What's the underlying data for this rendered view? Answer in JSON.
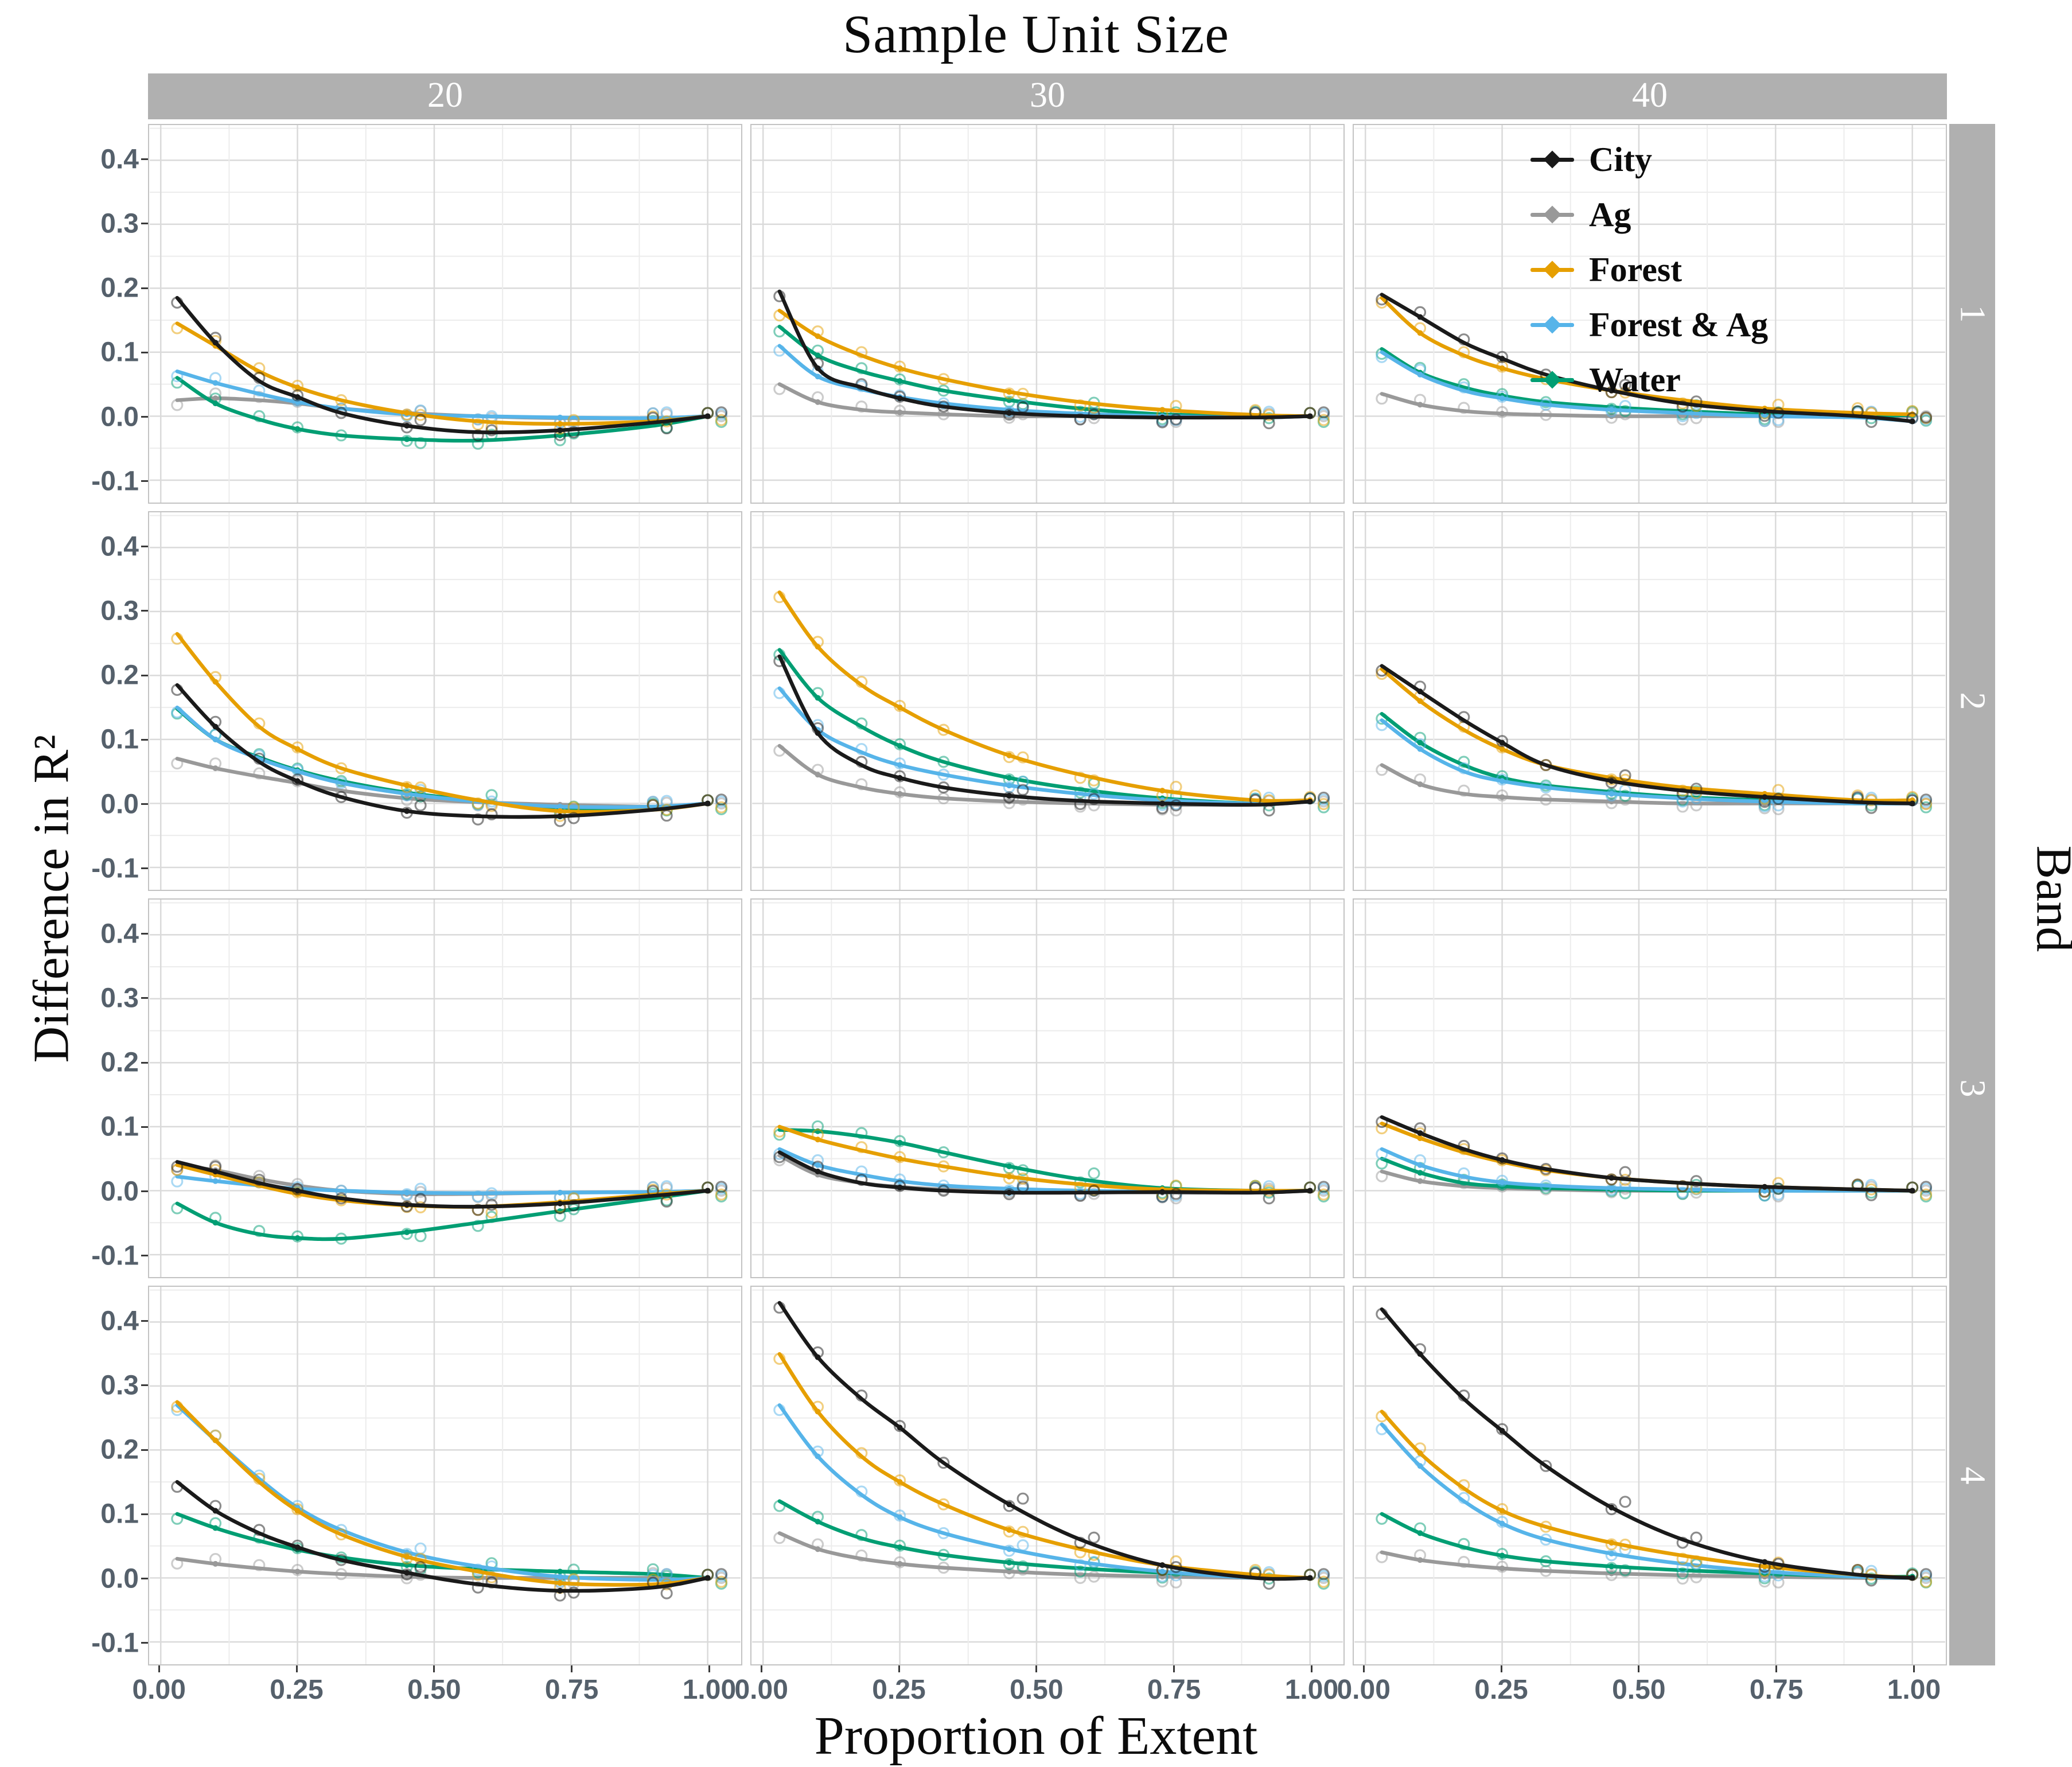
{
  "chart_data": {
    "type": "line",
    "title": "Sample Unit Size",
    "xlabel": "Proportion of Extent",
    "ylabel": "Difference in R²",
    "facet": {
      "col_title": "Sample Unit Size",
      "cols": [
        "20",
        "30",
        "40"
      ],
      "row_title": "Band",
      "rows": [
        "1",
        "2",
        "3",
        "4"
      ]
    },
    "legend": {
      "position": "inside top-right panel",
      "entries": [
        "City",
        "Ag",
        "Forest",
        "Forest & Ag",
        "Water"
      ]
    },
    "colors": {
      "City": "#1a1a1a",
      "Ag": "#999999",
      "Forest": "#E69F00",
      "Forest & Ag": "#56B4E9",
      "Water": "#009E73"
    },
    "grid": "on",
    "x_ticks": [
      "0.00",
      "0.25",
      "0.50",
      "0.75",
      "1.00"
    ],
    "x_tick_values": [
      0,
      0.25,
      0.5,
      0.75,
      1.0
    ],
    "y_ticks": [
      "0.4",
      "0.3",
      "0.2",
      "0.1",
      "0.0",
      "-0.1"
    ],
    "y_tick_values": [
      0.4,
      0.3,
      0.2,
      0.1,
      0.0,
      -0.1
    ],
    "xlim": [
      -0.02,
      1.06
    ],
    "ylim": [
      -0.135,
      0.455
    ],
    "x": [
      0.03,
      0.1,
      0.18,
      0.25,
      0.33,
      0.45,
      0.58,
      0.73,
      0.9,
      1.0
    ],
    "series_order": [
      "City",
      "Ag",
      "Forest",
      "Forest & Ag",
      "Water"
    ],
    "draw_order": [
      "Ag",
      "Water",
      "Forest & Ag",
      "Forest",
      "City"
    ],
    "panels": [
      {
        "col": "20",
        "row": "1",
        "series": {
          "City": [
            0.185,
            0.115,
            0.055,
            0.03,
            0.005,
            -0.015,
            -0.025,
            -0.022,
            -0.01,
            0.0
          ],
          "Ag": [
            0.025,
            0.028,
            0.025,
            0.02,
            0.012,
            0.005,
            0.0,
            -0.003,
            -0.003,
            0.0
          ],
          "Forest": [
            0.145,
            0.11,
            0.07,
            0.045,
            0.025,
            0.005,
            -0.008,
            -0.012,
            -0.008,
            0.0
          ],
          "Forest & Ag": [
            0.07,
            0.052,
            0.035,
            0.022,
            0.012,
            0.003,
            0.0,
            -0.002,
            -0.003,
            0.0
          ],
          "Water": [
            0.06,
            0.02,
            -0.005,
            -0.02,
            -0.03,
            -0.036,
            -0.038,
            -0.03,
            -0.015,
            0.0
          ]
        }
      },
      {
        "col": "30",
        "row": "1",
        "series": {
          "City": [
            0.195,
            0.075,
            0.045,
            0.028,
            0.015,
            0.005,
            0.0,
            -0.002,
            -0.002,
            0.0
          ],
          "Ag": [
            0.05,
            0.022,
            0.01,
            0.006,
            0.003,
            0.0,
            0.0,
            0.0,
            -0.002,
            0.0
          ],
          "Forest": [
            0.165,
            0.125,
            0.095,
            0.075,
            0.058,
            0.038,
            0.022,
            0.01,
            0.002,
            0.0
          ],
          "Forest & Ag": [
            0.11,
            0.062,
            0.042,
            0.03,
            0.02,
            0.01,
            0.004,
            0.0,
            -0.002,
            0.0
          ],
          "Water": [
            0.14,
            0.095,
            0.07,
            0.055,
            0.04,
            0.025,
            0.012,
            0.003,
            0.0,
            0.0
          ]
        }
      },
      {
        "col": "40",
        "row": "1",
        "series": {
          "City": [
            0.19,
            0.155,
            0.115,
            0.09,
            0.065,
            0.04,
            0.02,
            0.008,
            0.0,
            -0.008
          ],
          "Ag": [
            0.035,
            0.018,
            0.008,
            0.004,
            0.002,
            0.0,
            0.0,
            0.0,
            0.0,
            0.0
          ],
          "Forest": [
            0.185,
            0.13,
            0.095,
            0.075,
            0.058,
            0.04,
            0.025,
            0.012,
            0.005,
            0.003
          ],
          "Forest & Ag": [
            0.1,
            0.065,
            0.04,
            0.028,
            0.018,
            0.01,
            0.005,
            0.0,
            -0.002,
            -0.008
          ],
          "Water": [
            0.105,
            0.068,
            0.045,
            0.032,
            0.022,
            0.014,
            0.008,
            0.003,
            0.0,
            0.002
          ]
        }
      },
      {
        "col": "20",
        "row": "2",
        "series": {
          "City": [
            0.185,
            0.12,
            0.065,
            0.035,
            0.01,
            -0.012,
            -0.02,
            -0.02,
            -0.01,
            0.0
          ],
          "Ag": [
            0.07,
            0.055,
            0.042,
            0.032,
            0.02,
            0.008,
            0.002,
            -0.002,
            -0.005,
            0.0
          ],
          "Forest": [
            0.265,
            0.19,
            0.12,
            0.085,
            0.055,
            0.028,
            0.005,
            -0.012,
            -0.01,
            0.0
          ],
          "Forest & Ag": [
            0.15,
            0.1,
            0.07,
            0.05,
            0.032,
            0.015,
            0.003,
            -0.005,
            -0.005,
            0.0
          ],
          "Water": [
            0.148,
            0.1,
            0.072,
            0.052,
            0.035,
            0.017,
            0.004,
            -0.008,
            -0.008,
            0.0
          ]
        }
      },
      {
        "col": "30",
        "row": "2",
        "series": {
          "City": [
            0.23,
            0.11,
            0.06,
            0.04,
            0.025,
            0.012,
            0.004,
            0.0,
            -0.002,
            0.003
          ],
          "Ag": [
            0.09,
            0.045,
            0.025,
            0.015,
            0.008,
            0.003,
            0.0,
            -0.002,
            -0.002,
            0.003
          ],
          "Forest": [
            0.33,
            0.245,
            0.185,
            0.15,
            0.115,
            0.075,
            0.045,
            0.02,
            0.005,
            0.005
          ],
          "Forest & Ag": [
            0.18,
            0.115,
            0.08,
            0.06,
            0.045,
            0.028,
            0.015,
            0.005,
            0.0,
            0.003
          ],
          "Water": [
            0.24,
            0.165,
            0.12,
            0.09,
            0.065,
            0.04,
            0.022,
            0.008,
            0.0,
            0.003
          ]
        }
      },
      {
        "col": "40",
        "row": "2",
        "series": {
          "City": [
            0.215,
            0.175,
            0.13,
            0.095,
            0.06,
            0.035,
            0.02,
            0.01,
            0.002,
            0.0
          ],
          "Ag": [
            0.06,
            0.03,
            0.015,
            0.01,
            0.006,
            0.003,
            0.0,
            0.0,
            0.0,
            0.0
          ],
          "Forest": [
            0.21,
            0.16,
            0.115,
            0.085,
            0.06,
            0.04,
            0.025,
            0.015,
            0.005,
            0.005
          ],
          "Forest & Ag": [
            0.13,
            0.085,
            0.05,
            0.035,
            0.025,
            0.015,
            0.008,
            0.003,
            0.0,
            0.0
          ],
          "Water": [
            0.14,
            0.095,
            0.06,
            0.04,
            0.028,
            0.018,
            0.01,
            0.005,
            0.0,
            0.003
          ]
        }
      },
      {
        "col": "20",
        "row": "3",
        "series": {
          "City": [
            0.045,
            0.03,
            0.012,
            0.0,
            -0.012,
            -0.022,
            -0.025,
            -0.02,
            -0.008,
            0.0
          ],
          "Ag": [
            0.04,
            0.032,
            0.018,
            0.008,
            0.0,
            -0.005,
            -0.005,
            -0.003,
            -0.002,
            0.0
          ],
          "Forest": [
            0.04,
            0.025,
            0.008,
            -0.005,
            -0.015,
            -0.023,
            -0.025,
            -0.018,
            -0.006,
            0.0
          ],
          "Forest & Ag": [
            0.022,
            0.015,
            0.008,
            0.003,
            0.0,
            -0.003,
            -0.004,
            -0.003,
            -0.002,
            0.0
          ],
          "Water": [
            -0.02,
            -0.05,
            -0.068,
            -0.074,
            -0.075,
            -0.065,
            -0.05,
            -0.032,
            -0.012,
            0.0
          ]
        }
      },
      {
        "col": "30",
        "row": "3",
        "series": {
          "City": [
            0.06,
            0.03,
            0.012,
            0.005,
            0.0,
            -0.003,
            -0.003,
            -0.002,
            -0.003,
            0.0
          ],
          "Ag": [
            0.055,
            0.025,
            0.012,
            0.006,
            0.002,
            0.0,
            -0.002,
            -0.003,
            -0.003,
            0.0
          ],
          "Forest": [
            0.1,
            0.08,
            0.063,
            0.05,
            0.038,
            0.022,
            0.01,
            0.002,
            0.0,
            0.0
          ],
          "Forest & Ag": [
            0.065,
            0.04,
            0.025,
            0.015,
            0.008,
            0.003,
            0.0,
            -0.002,
            -0.002,
            0.0
          ],
          "Water": [
            0.095,
            0.093,
            0.085,
            0.075,
            0.06,
            0.038,
            0.018,
            0.004,
            0.0,
            0.0
          ]
        }
      },
      {
        "col": "40",
        "row": "3",
        "series": {
          "City": [
            0.115,
            0.09,
            0.065,
            0.048,
            0.034,
            0.02,
            0.012,
            0.006,
            0.002,
            0.0
          ],
          "Ag": [
            0.03,
            0.015,
            0.007,
            0.004,
            0.002,
            0.0,
            0.0,
            0.0,
            0.0,
            0.0
          ],
          "Forest": [
            0.105,
            0.082,
            0.06,
            0.045,
            0.032,
            0.02,
            0.012,
            0.006,
            0.002,
            0.0
          ],
          "Forest & Ag": [
            0.065,
            0.04,
            0.022,
            0.013,
            0.008,
            0.004,
            0.002,
            0.0,
            0.0,
            0.0
          ],
          "Water": [
            0.05,
            0.028,
            0.012,
            0.007,
            0.004,
            0.002,
            0.0,
            0.0,
            0.0,
            0.0
          ]
        }
      },
      {
        "col": "20",
        "row": "4",
        "series": {
          "City": [
            0.15,
            0.105,
            0.07,
            0.048,
            0.028,
            0.008,
            -0.01,
            -0.02,
            -0.015,
            0.0
          ],
          "Ag": [
            0.03,
            0.022,
            0.015,
            0.01,
            0.006,
            0.002,
            0.0,
            0.0,
            0.0,
            0.0
          ],
          "Forest": [
            0.275,
            0.215,
            0.15,
            0.105,
            0.068,
            0.033,
            0.01,
            -0.008,
            -0.01,
            0.0
          ],
          "Forest & Ag": [
            0.27,
            0.215,
            0.155,
            0.11,
            0.075,
            0.04,
            0.018,
            0.002,
            -0.003,
            0.0
          ],
          "Water": [
            0.1,
            0.078,
            0.058,
            0.044,
            0.032,
            0.02,
            0.014,
            0.01,
            0.006,
            0.0
          ]
        }
      },
      {
        "col": "30",
        "row": "4",
        "series": {
          "City": [
            0.43,
            0.345,
            0.28,
            0.235,
            0.18,
            0.115,
            0.06,
            0.02,
            0.0,
            0.0
          ],
          "Ag": [
            0.07,
            0.045,
            0.03,
            0.022,
            0.016,
            0.01,
            0.005,
            0.002,
            0.0,
            0.0
          ],
          "Forest": [
            0.35,
            0.26,
            0.19,
            0.15,
            0.115,
            0.075,
            0.045,
            0.02,
            0.005,
            0.0
          ],
          "Forest & Ag": [
            0.27,
            0.19,
            0.13,
            0.095,
            0.07,
            0.045,
            0.025,
            0.01,
            0.0,
            0.0
          ],
          "Water": [
            0.12,
            0.088,
            0.062,
            0.048,
            0.036,
            0.024,
            0.015,
            0.008,
            0.002,
            0.0
          ]
        }
      },
      {
        "col": "40",
        "row": "4",
        "series": {
          "City": [
            0.42,
            0.35,
            0.28,
            0.23,
            0.175,
            0.11,
            0.06,
            0.025,
            0.005,
            0.0
          ],
          "Ag": [
            0.04,
            0.028,
            0.02,
            0.015,
            0.011,
            0.007,
            0.004,
            0.002,
            0.0,
            0.0
          ],
          "Forest": [
            0.26,
            0.195,
            0.14,
            0.105,
            0.08,
            0.055,
            0.035,
            0.018,
            0.005,
            0.0
          ],
          "Forest & Ag": [
            0.24,
            0.175,
            0.12,
            0.085,
            0.06,
            0.038,
            0.022,
            0.01,
            0.002,
            0.0
          ],
          "Water": [
            0.1,
            0.07,
            0.048,
            0.035,
            0.026,
            0.018,
            0.012,
            0.007,
            0.002,
            0.002
          ]
        }
      }
    ]
  },
  "style_colors": {
    "strip_bg": "#b0b0b0",
    "strip_text": "#ffffff",
    "grid_major": "#dadada",
    "grid_minor": "#ececec",
    "panel_border": "#c3c3c3",
    "axis_text": "#55606b",
    "tick_mark": "#3a3a3a"
  }
}
